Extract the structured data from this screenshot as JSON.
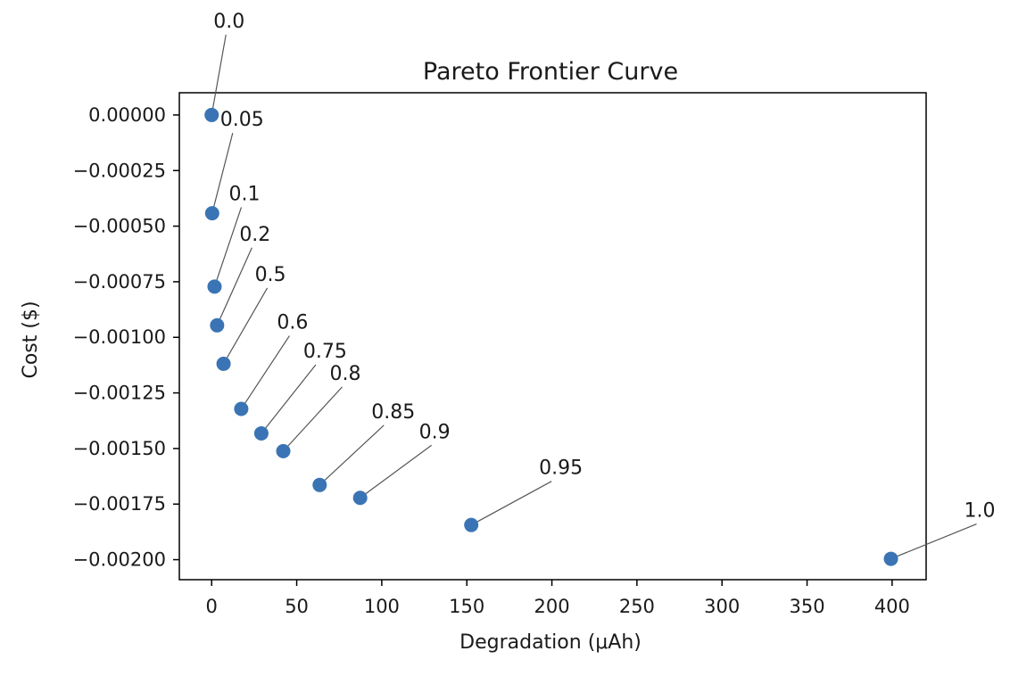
{
  "chart_data": {
    "type": "scatter",
    "title": "Pareto Frontier Curve",
    "xlabel": "Degradation (μAh)",
    "ylabel": "Cost ($)",
    "xlim": [
      -19,
      420
    ],
    "ylim": [
      -0.00209,
      0.0001
    ],
    "grid": false,
    "marker_color": "#3a74b4",
    "xticks": [
      0,
      50,
      100,
      150,
      200,
      250,
      300,
      350,
      400
    ],
    "xtick_labels": [
      "0",
      "50",
      "100",
      "150",
      "200",
      "250",
      "300",
      "350",
      "400"
    ],
    "yticks": [
      0,
      -0.00025,
      -0.0005,
      -0.00075,
      -0.001,
      -0.00125,
      -0.0015,
      -0.00175,
      -0.002
    ],
    "ytick_labels": [
      "0.00000",
      "−0.00025",
      "−0.00050",
      "−0.00075",
      "−0.00100",
      "−0.00125",
      "−0.00150",
      "−0.00175",
      "−0.00200"
    ],
    "points": [
      {
        "x": 0.0,
        "y": 0.0,
        "label": "0.0"
      },
      {
        "x": 0.3,
        "y": -0.000442,
        "label": "0.05"
      },
      {
        "x": 1.7,
        "y": -0.000772,
        "label": "0.1"
      },
      {
        "x": 3.2,
        "y": -0.000946,
        "label": "0.2"
      },
      {
        "x": 7.0,
        "y": -0.001119,
        "label": "0.5"
      },
      {
        "x": 17.4,
        "y": -0.001322,
        "label": "0.6"
      },
      {
        "x": 29.2,
        "y": -0.001432,
        "label": "0.75"
      },
      {
        "x": 42.1,
        "y": -0.001512,
        "label": "0.8"
      },
      {
        "x": 63.5,
        "y": -0.001664,
        "label": "0.85"
      },
      {
        "x": 87.3,
        "y": -0.001722,
        "label": "0.9"
      },
      {
        "x": 152.6,
        "y": -0.001844,
        "label": "0.95"
      },
      {
        "x": 399.3,
        "y": -0.001996,
        "label": "1.0"
      }
    ]
  }
}
